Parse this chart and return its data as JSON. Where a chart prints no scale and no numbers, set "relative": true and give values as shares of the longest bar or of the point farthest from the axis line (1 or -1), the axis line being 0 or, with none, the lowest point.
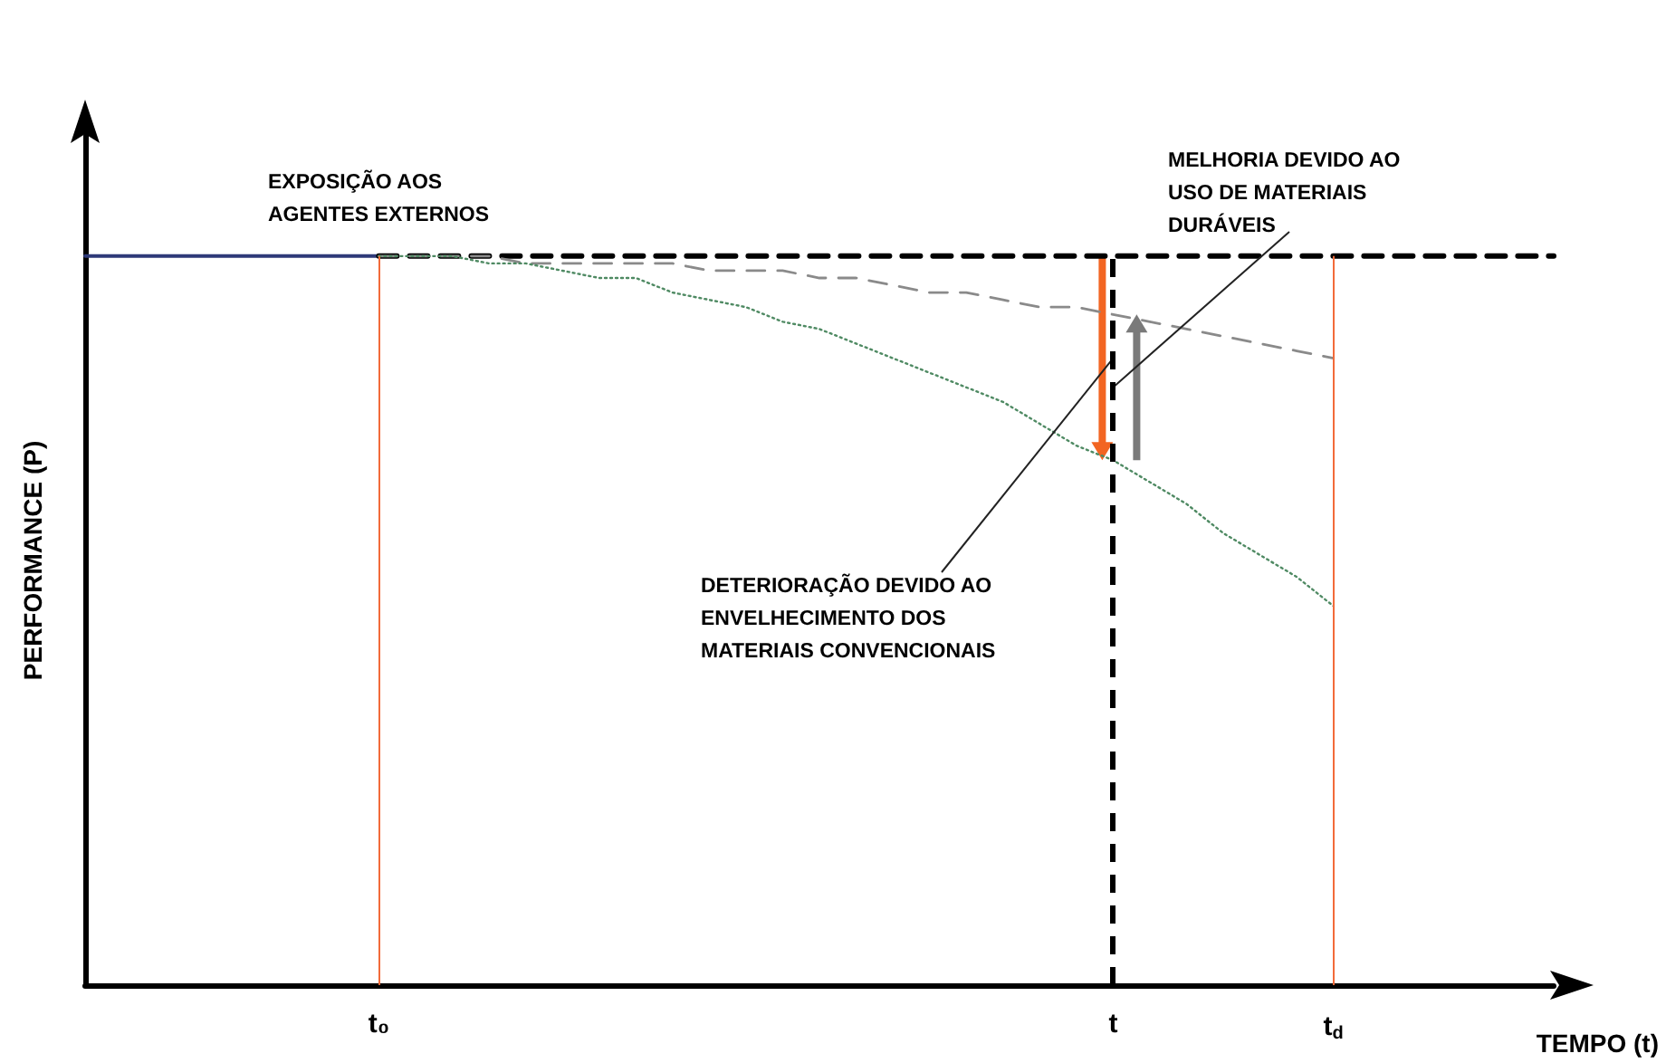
{
  "chart_data": {
    "type": "line",
    "relative": true,
    "xlabel": "TEMPO (t)",
    "ylabel": "PERFORMANCE (P)",
    "categories": [
      null,
      null,
      null,
      null,
      null,
      null,
      null,
      null,
      "t₀",
      null,
      null,
      null,
      null,
      null,
      null,
      null,
      null,
      null,
      null,
      null,
      null,
      null,
      null,
      null,
      null,
      null,
      null,
      null,
      "t",
      null,
      null,
      null,
      null,
      null,
      "t$_{d}$",
      null,
      null,
      null,
      null,
      null,
      null
    ],
    "series": [
      {
        "color": "#2e3a78",
        "line_style": "solid",
        "values": [
          1,
          1,
          1,
          1,
          1,
          1,
          1,
          1,
          1,
          null,
          null,
          null,
          null,
          null,
          null,
          null,
          null,
          null,
          null,
          null,
          null,
          null,
          null,
          null,
          null,
          null,
          null,
          null,
          null,
          null,
          null,
          null,
          null,
          null,
          null,
          null,
          null,
          null,
          null,
          null,
          null
        ]
      },
      {
        "color": "#000000",
        "line_style": "dashed",
        "values": [
          null,
          null,
          null,
          null,
          null,
          null,
          null,
          null,
          1,
          1,
          1,
          1,
          1,
          1,
          1,
          1,
          1,
          1,
          1,
          1,
          1,
          1,
          1,
          1,
          1,
          1,
          1,
          1,
          1,
          1,
          1,
          1,
          1,
          1,
          1,
          1,
          1,
          1,
          1,
          1,
          1
        ]
      },
      {
        "color": "#8a8a8a",
        "line_style": "dashed",
        "values": [
          null,
          null,
          null,
          null,
          null,
          null,
          null,
          null,
          1,
          1,
          1,
          1,
          0.99,
          0.99,
          0.99,
          0.99,
          0.99,
          0.98,
          0.98,
          0.98,
          0.97,
          0.97,
          0.96,
          0.95,
          0.95,
          0.94,
          0.93,
          0.93,
          0.92,
          0.91,
          0.9,
          0.89,
          0.88,
          0.87,
          0.86,
          null,
          null,
          null,
          null,
          null,
          null
        ]
      },
      {
        "color": "#4f8a63",
        "line_style": "dotted",
        "values": [
          null,
          null,
          null,
          null,
          null,
          null,
          null,
          null,
          1,
          1,
          1,
          0.99,
          0.99,
          0.98,
          0.97,
          0.97,
          0.95,
          0.94,
          0.93,
          0.91,
          0.9,
          0.88,
          0.86,
          0.84,
          0.82,
          0.8,
          0.77,
          0.74,
          0.72,
          0.69,
          0.66,
          0.62,
          0.59,
          0.56,
          0.52,
          null,
          null,
          null,
          null,
          null,
          null
        ]
      }
    ],
    "ref_lines": [
      {
        "axis": "x",
        "value": "t₀",
        "color": "#f26b3a",
        "line_style": "solid"
      },
      {
        "axis": "x",
        "value": "t",
        "color": "#000000",
        "line_style": "dashed"
      },
      {
        "axis": "x",
        "value": "t$_{d}$",
        "color": "#f26b3a",
        "line_style": "solid"
      }
    ],
    "annotations": [
      "EXPOSIÇÃO AOS\nAGENTES EXTERNOS",
      {
        "text": "MELHORIA DEVIDO AO\nUSO DE MATERIAIS\nDURÁVEIS",
        "x": "t",
        "y": 0.82
      },
      {
        "text": "DETERIORAÇÃO DEVIDO AO\nENVELHECIMENTO DOS\nMATERIAIS CONVENCIONAIS",
        "x": "t",
        "y": 0.86
      }
    ]
  }
}
